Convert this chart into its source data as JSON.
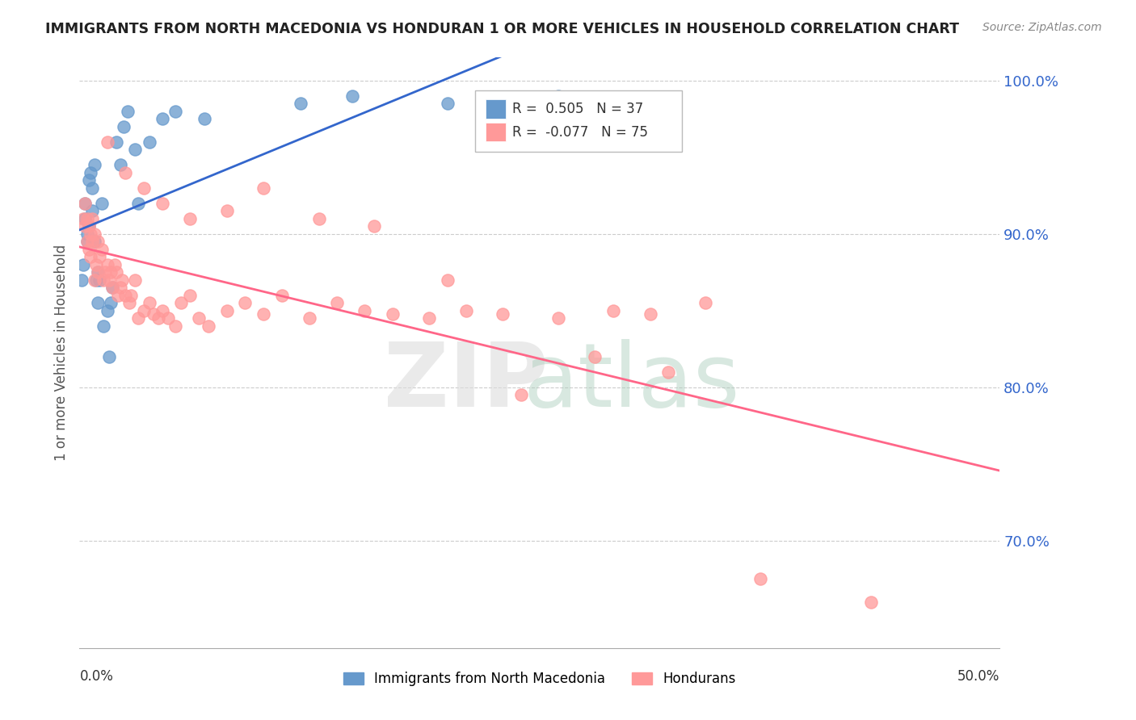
{
  "title": "IMMIGRANTS FROM NORTH MACEDONIA VS HONDURAN 1 OR MORE VEHICLES IN HOUSEHOLD CORRELATION CHART",
  "source": "Source: ZipAtlas.com",
  "ylabel": "1 or more Vehicles in Household",
  "legend_blue_r_val": "0.505",
  "legend_blue_n_val": "37",
  "legend_pink_r_val": "-0.077",
  "legend_pink_n_val": "75",
  "legend_blue_label": "Immigrants from North Macedonia",
  "legend_pink_label": "Hondurans",
  "blue_color": "#6699CC",
  "pink_color": "#FF9999",
  "blue_line_color": "#3366CC",
  "pink_line_color": "#FF6688",
  "tick_color": "#3366CC",
  "xlim": [
    0.0,
    0.5
  ],
  "ylim": [
    0.63,
    1.015
  ],
  "yticks": [
    0.7,
    0.8,
    0.9,
    1.0
  ],
  "ytick_labels": [
    "70.0%",
    "80.0%",
    "90.0%",
    "100.0%"
  ],
  "blue_scatter_x": [
    0.001,
    0.002,
    0.003,
    0.003,
    0.004,
    0.004,
    0.005,
    0.005,
    0.006,
    0.007,
    0.007,
    0.008,
    0.008,
    0.009,
    0.01,
    0.01,
    0.011,
    0.012,
    0.013,
    0.015,
    0.016,
    0.017,
    0.018,
    0.02,
    0.022,
    0.024,
    0.026,
    0.03,
    0.032,
    0.038,
    0.045,
    0.052,
    0.068,
    0.12,
    0.148,
    0.2,
    0.26
  ],
  "blue_scatter_y": [
    0.87,
    0.88,
    0.92,
    0.91,
    0.9,
    0.895,
    0.935,
    0.905,
    0.94,
    0.93,
    0.915,
    0.945,
    0.895,
    0.87,
    0.875,
    0.855,
    0.87,
    0.92,
    0.84,
    0.85,
    0.82,
    0.855,
    0.865,
    0.96,
    0.945,
    0.97,
    0.98,
    0.955,
    0.92,
    0.96,
    0.975,
    0.98,
    0.975,
    0.985,
    0.99,
    0.985,
    0.99
  ],
  "pink_scatter_x": [
    0.002,
    0.003,
    0.003,
    0.004,
    0.004,
    0.005,
    0.005,
    0.006,
    0.006,
    0.007,
    0.007,
    0.008,
    0.008,
    0.009,
    0.01,
    0.01,
    0.011,
    0.012,
    0.013,
    0.014,
    0.015,
    0.016,
    0.017,
    0.018,
    0.019,
    0.02,
    0.021,
    0.022,
    0.023,
    0.025,
    0.027,
    0.028,
    0.03,
    0.032,
    0.035,
    0.038,
    0.04,
    0.043,
    0.045,
    0.048,
    0.052,
    0.055,
    0.06,
    0.065,
    0.07,
    0.08,
    0.09,
    0.1,
    0.11,
    0.125,
    0.14,
    0.155,
    0.17,
    0.19,
    0.21,
    0.23,
    0.26,
    0.29,
    0.31,
    0.34,
    0.015,
    0.025,
    0.035,
    0.045,
    0.06,
    0.08,
    0.1,
    0.13,
    0.16,
    0.2,
    0.24,
    0.28,
    0.32,
    0.37,
    0.43
  ],
  "pink_scatter_y": [
    0.91,
    0.905,
    0.92,
    0.895,
    0.91,
    0.89,
    0.905,
    0.885,
    0.9,
    0.91,
    0.895,
    0.9,
    0.87,
    0.88,
    0.895,
    0.875,
    0.885,
    0.89,
    0.87,
    0.875,
    0.88,
    0.87,
    0.875,
    0.865,
    0.88,
    0.875,
    0.86,
    0.865,
    0.87,
    0.86,
    0.855,
    0.86,
    0.87,
    0.845,
    0.85,
    0.855,
    0.848,
    0.845,
    0.85,
    0.845,
    0.84,
    0.855,
    0.86,
    0.845,
    0.84,
    0.85,
    0.855,
    0.848,
    0.86,
    0.845,
    0.855,
    0.85,
    0.848,
    0.845,
    0.85,
    0.848,
    0.845,
    0.85,
    0.848,
    0.855,
    0.96,
    0.94,
    0.93,
    0.92,
    0.91,
    0.915,
    0.93,
    0.91,
    0.905,
    0.87,
    0.795,
    0.82,
    0.81,
    0.675,
    0.66
  ]
}
